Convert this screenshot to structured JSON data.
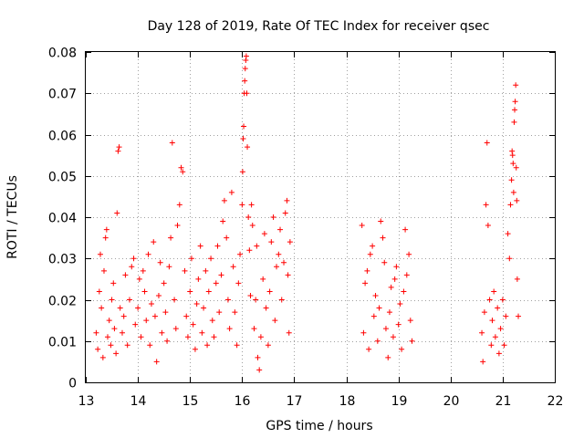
{
  "chart_data": {
    "type": "scatter",
    "title": "Day 128 of 2019, Rate Of TEC Index for receiver qsec",
    "xlabel": "GPS time / hours",
    "ylabel": "ROTI / TECUs",
    "xlim": [
      13,
      22
    ],
    "ylim": [
      0,
      0.08
    ],
    "xticks": [
      13,
      14,
      15,
      16,
      17,
      18,
      19,
      20,
      21,
      22
    ],
    "yticks": [
      0,
      0.01,
      0.02,
      0.03,
      0.04,
      0.05,
      0.06,
      0.07,
      0.08
    ],
    "xtick_labels": [
      "13",
      "14",
      "15",
      "16",
      "17",
      "18",
      "19",
      "20",
      "21",
      "22"
    ],
    "ytick_labels": [
      "0",
      "0.01",
      "0.02",
      "0.03",
      "0.04",
      "0.05",
      "0.06",
      "0.07",
      "0.08"
    ],
    "grid": true,
    "marker": "+",
    "color": "#ff0000",
    "series": [
      {
        "name": "ROTI",
        "points": [
          [
            13.2,
            0.012
          ],
          [
            13.23,
            0.008
          ],
          [
            13.26,
            0.022
          ],
          [
            13.28,
            0.031
          ],
          [
            13.3,
            0.018
          ],
          [
            13.33,
            0.006
          ],
          [
            13.35,
            0.027
          ],
          [
            13.38,
            0.035
          ],
          [
            13.4,
            0.037
          ],
          [
            13.42,
            0.011
          ],
          [
            13.45,
            0.015
          ],
          [
            13.48,
            0.009
          ],
          [
            13.5,
            0.02
          ],
          [
            13.53,
            0.024
          ],
          [
            13.55,
            0.013
          ],
          [
            13.58,
            0.007
          ],
          [
            13.6,
            0.041
          ],
          [
            13.62,
            0.056
          ],
          [
            13.64,
            0.057
          ],
          [
            13.66,
            0.018
          ],
          [
            13.7,
            0.012
          ],
          [
            13.73,
            0.016
          ],
          [
            13.76,
            0.026
          ],
          [
            13.8,
            0.009
          ],
          [
            13.84,
            0.02
          ],
          [
            13.88,
            0.028
          ],
          [
            13.92,
            0.03
          ],
          [
            13.95,
            0.014
          ],
          [
            14.0,
            0.018
          ],
          [
            14.03,
            0.025
          ],
          [
            14.06,
            0.011
          ],
          [
            14.1,
            0.027
          ],
          [
            14.13,
            0.022
          ],
          [
            14.16,
            0.015
          ],
          [
            14.2,
            0.031
          ],
          [
            14.23,
            0.009
          ],
          [
            14.26,
            0.019
          ],
          [
            14.3,
            0.034
          ],
          [
            14.33,
            0.016
          ],
          [
            14.36,
            0.005
          ],
          [
            14.4,
            0.021
          ],
          [
            14.43,
            0.029
          ],
          [
            14.46,
            0.012
          ],
          [
            14.5,
            0.024
          ],
          [
            14.53,
            0.017
          ],
          [
            14.56,
            0.01
          ],
          [
            14.6,
            0.028
          ],
          [
            14.63,
            0.035
          ],
          [
            14.66,
            0.058
          ],
          [
            14.7,
            0.02
          ],
          [
            14.73,
            0.013
          ],
          [
            14.76,
            0.038
          ],
          [
            14.8,
            0.043
          ],
          [
            14.83,
            0.052
          ],
          [
            14.86,
            0.051
          ],
          [
            14.9,
            0.027
          ],
          [
            14.93,
            0.016
          ],
          [
            14.96,
            0.011
          ],
          [
            15.0,
            0.022
          ],
          [
            15.03,
            0.03
          ],
          [
            15.06,
            0.014
          ],
          [
            15.1,
            0.008
          ],
          [
            15.13,
            0.019
          ],
          [
            15.16,
            0.025
          ],
          [
            15.2,
            0.033
          ],
          [
            15.23,
            0.012
          ],
          [
            15.26,
            0.018
          ],
          [
            15.3,
            0.027
          ],
          [
            15.33,
            0.009
          ],
          [
            15.36,
            0.022
          ],
          [
            15.4,
            0.03
          ],
          [
            15.43,
            0.015
          ],
          [
            15.46,
            0.011
          ],
          [
            15.5,
            0.024
          ],
          [
            15.53,
            0.033
          ],
          [
            15.56,
            0.017
          ],
          [
            15.6,
            0.026
          ],
          [
            15.63,
            0.039
          ],
          [
            15.66,
            0.044
          ],
          [
            15.7,
            0.035
          ],
          [
            15.73,
            0.02
          ],
          [
            15.76,
            0.013
          ],
          [
            15.8,
            0.046
          ],
          [
            15.83,
            0.028
          ],
          [
            15.86,
            0.017
          ],
          [
            15.9,
            0.009
          ],
          [
            15.93,
            0.024
          ],
          [
            15.96,
            0.031
          ],
          [
            16.0,
            0.043
          ],
          [
            16.01,
            0.051
          ],
          [
            16.02,
            0.059
          ],
          [
            16.03,
            0.062
          ],
          [
            16.04,
            0.07
          ],
          [
            16.05,
            0.073
          ],
          [
            16.06,
            0.076
          ],
          [
            16.07,
            0.078
          ],
          [
            16.08,
            0.079
          ],
          [
            16.09,
            0.07
          ],
          [
            16.1,
            0.057
          ],
          [
            16.12,
            0.04
          ],
          [
            16.14,
            0.032
          ],
          [
            16.16,
            0.021
          ],
          [
            16.18,
            0.043
          ],
          [
            16.2,
            0.038
          ],
          [
            16.23,
            0.013
          ],
          [
            16.26,
            0.02
          ],
          [
            16.28,
            0.033
          ],
          [
            16.3,
            0.006
          ],
          [
            16.33,
            0.003
          ],
          [
            16.36,
            0.011
          ],
          [
            16.4,
            0.025
          ],
          [
            16.43,
            0.036
          ],
          [
            16.46,
            0.018
          ],
          [
            16.5,
            0.009
          ],
          [
            16.53,
            0.022
          ],
          [
            16.56,
            0.034
          ],
          [
            16.6,
            0.04
          ],
          [
            16.63,
            0.015
          ],
          [
            16.66,
            0.028
          ],
          [
            16.7,
            0.031
          ],
          [
            16.73,
            0.037
          ],
          [
            16.76,
            0.02
          ],
          [
            16.8,
            0.029
          ],
          [
            16.83,
            0.041
          ],
          [
            16.86,
            0.044
          ],
          [
            16.88,
            0.026
          ],
          [
            16.9,
            0.012
          ],
          [
            16.92,
            0.034
          ],
          [
            18.3,
            0.038
          ],
          [
            18.33,
            0.012
          ],
          [
            18.36,
            0.024
          ],
          [
            18.4,
            0.027
          ],
          [
            18.43,
            0.008
          ],
          [
            18.46,
            0.031
          ],
          [
            18.5,
            0.033
          ],
          [
            18.53,
            0.016
          ],
          [
            18.56,
            0.021
          ],
          [
            18.6,
            0.01
          ],
          [
            18.63,
            0.018
          ],
          [
            18.66,
            0.039
          ],
          [
            18.7,
            0.035
          ],
          [
            18.73,
            0.029
          ],
          [
            18.76,
            0.013
          ],
          [
            18.8,
            0.006
          ],
          [
            18.83,
            0.017
          ],
          [
            18.86,
            0.023
          ],
          [
            18.9,
            0.011
          ],
          [
            18.93,
            0.025
          ],
          [
            18.96,
            0.028
          ],
          [
            19.0,
            0.014
          ],
          [
            19.03,
            0.019
          ],
          [
            19.06,
            0.008
          ],
          [
            19.1,
            0.022
          ],
          [
            19.13,
            0.037
          ],
          [
            19.16,
            0.026
          ],
          [
            19.2,
            0.031
          ],
          [
            19.23,
            0.015
          ],
          [
            19.26,
            0.01
          ],
          [
            20.6,
            0.012
          ],
          [
            20.62,
            0.005
          ],
          [
            20.65,
            0.017
          ],
          [
            20.68,
            0.043
          ],
          [
            20.7,
            0.058
          ],
          [
            20.72,
            0.038
          ],
          [
            20.75,
            0.02
          ],
          [
            20.78,
            0.009
          ],
          [
            20.8,
            0.015
          ],
          [
            20.83,
            0.022
          ],
          [
            20.86,
            0.011
          ],
          [
            20.9,
            0.018
          ],
          [
            20.93,
            0.007
          ],
          [
            20.96,
            0.013
          ],
          [
            21.0,
            0.02
          ],
          [
            21.03,
            0.009
          ],
          [
            21.06,
            0.016
          ],
          [
            21.1,
            0.036
          ],
          [
            21.13,
            0.03
          ],
          [
            21.15,
            0.043
          ],
          [
            21.17,
            0.049
          ],
          [
            21.18,
            0.056
          ],
          [
            21.19,
            0.055
          ],
          [
            21.2,
            0.053
          ],
          [
            21.21,
            0.046
          ],
          [
            21.22,
            0.063
          ],
          [
            21.23,
            0.066
          ],
          [
            21.24,
            0.068
          ],
          [
            21.25,
            0.072
          ],
          [
            21.26,
            0.052
          ],
          [
            21.27,
            0.044
          ],
          [
            21.28,
            0.025
          ],
          [
            21.3,
            0.016
          ]
        ]
      }
    ]
  }
}
